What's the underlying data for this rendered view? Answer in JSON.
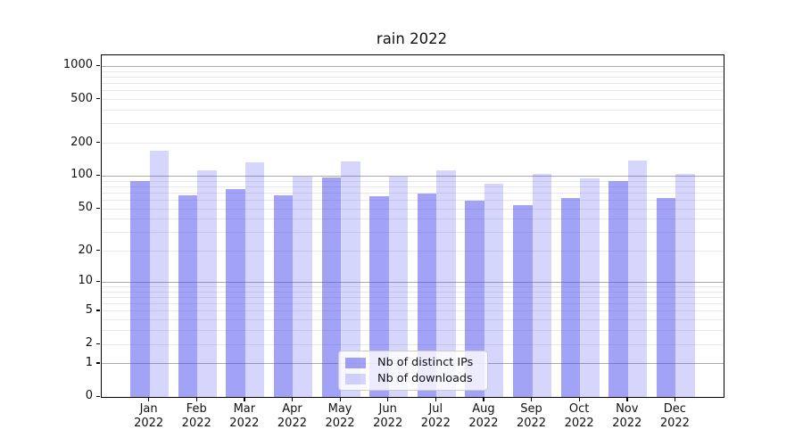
{
  "title": "rain 2022",
  "chart_data": {
    "type": "bar",
    "title": "rain 2022",
    "categories": [
      "Jan 2022",
      "Feb 2022",
      "Mar 2022",
      "Apr 2022",
      "May 2022",
      "Jun 2022",
      "Jul 2022",
      "Aug 2022",
      "Sep 2022",
      "Oct 2022",
      "Nov 2022",
      "Dec 2022"
    ],
    "series": [
      {
        "name": "Nb of distinct IPs",
        "color": "rgba(70,70,240,0.5)",
        "values": [
          90,
          67,
          76,
          66,
          97,
          65,
          69,
          59,
          54,
          63,
          90,
          63
        ]
      },
      {
        "name": "Nb of downloads",
        "color": "rgba(70,70,240,0.22)",
        "values": [
          170,
          112,
          133,
          98,
          135,
          99,
          113,
          85,
          105,
          96,
          140,
          105
        ]
      }
    ],
    "xlabel": "",
    "ylabel": "",
    "yscale": "log1p",
    "ylim": [
      0,
      1260
    ],
    "y_major_ticks": [
      0,
      1,
      2,
      5,
      10,
      20,
      50,
      100,
      200,
      500,
      1000
    ],
    "y_minor_ticks": [
      3,
      4,
      6,
      7,
      8,
      9,
      30,
      40,
      60,
      70,
      80,
      90,
      300,
      400,
      600,
      700,
      800,
      900
    ],
    "grid": true,
    "legend_position": "lower center",
    "colors": {
      "grid_major": "#ababab",
      "grid_minor": "#e9e9e9",
      "spine": "#000000",
      "text": "#111111"
    }
  }
}
